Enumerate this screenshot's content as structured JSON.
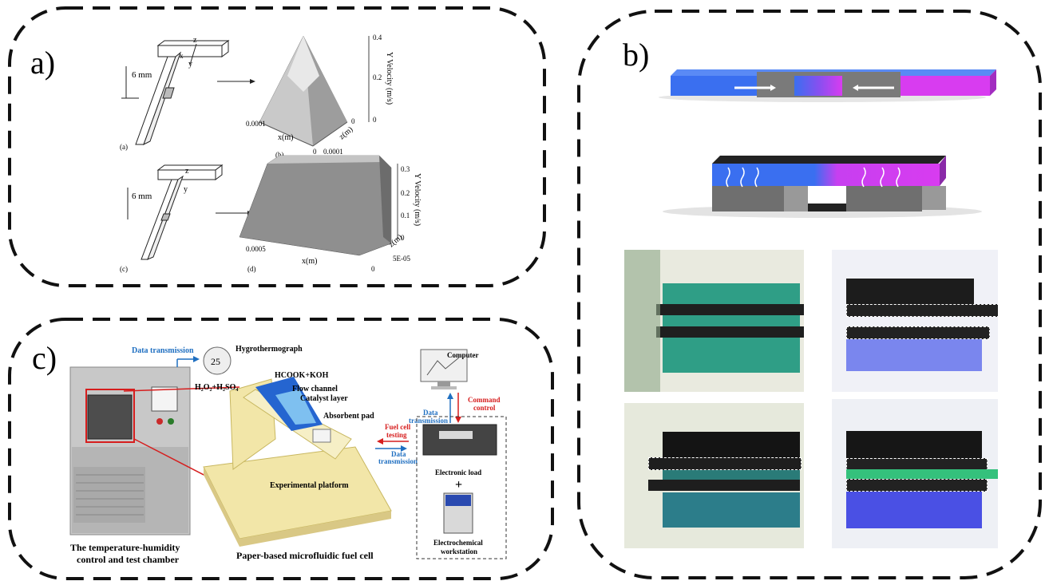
{
  "panels": {
    "a": {
      "letter": "a)",
      "sub": {
        "a": "(a)",
        "b": "(b)",
        "c": "(c)",
        "d": "(d)"
      },
      "dim_upper": "6 mm",
      "dim_lower": "6 mm",
      "axis_z": "z",
      "axis_x": "x",
      "axis_y": "y",
      "plot_b": {
        "ylabel": "Y Velocity (m/s)",
        "ticks": [
          "0.4",
          "0.2",
          "0"
        ],
        "xlabel": "x(m)",
        "zlabel": "z(m)",
        "x_tick": "0.0001",
        "z_tick": "0.0001",
        "origin1": "0",
        "origin2": "0"
      },
      "plot_d": {
        "ylabel": "Y Velocity (m/s)",
        "ticks": [
          "0.3",
          "0.2",
          "0.1",
          "0"
        ],
        "xlabel": "x(m)",
        "zlabel": "z(m)",
        "x_tick": "0.0005",
        "z_tick": "5E-05",
        "origin1": "0",
        "origin2": "0"
      }
    },
    "b": {
      "letter": "b)"
    },
    "c": {
      "letter": "c)",
      "data_transmission_top": "Data transmission",
      "hygrothermograph": "Hygrothermograph",
      "hygro_display": "25",
      "h2o2": "H₂O₂+H₂SO₄",
      "hcook": "HCOOK+KOH",
      "flow_channel": "Flow channel",
      "catalyst_layer": "Catalyst layer",
      "absorbent_pad": "Absorbent  pad",
      "experimental_platform": "Experimental platform",
      "fuel_cell_testing_1": "Fuel cell",
      "fuel_cell_testing_2": "testing",
      "data_trans_mid_1": "Data",
      "data_trans_mid_2": "transmission",
      "computer": "Computer",
      "data_trans_right_1": "Data",
      "data_trans_right_2": "transmission",
      "command_control_1": "Command",
      "command_control_2": "control",
      "electronic_load": "Electronic load",
      "plus": "+",
      "electrochem_1": "Electrochemical",
      "electrochem_2": "workstation",
      "chamber_caption_1": "The temperature-humidity",
      "chamber_caption_2": "control and test chamber",
      "fuel_cell_caption": "Paper-based microfluidic fuel cell"
    }
  },
  "colors": {
    "blue_accent": "#1f6fc1",
    "red_accent": "#d61e1e",
    "magenta": "#d23cf0",
    "blue_stream": "#3b6cf0"
  }
}
